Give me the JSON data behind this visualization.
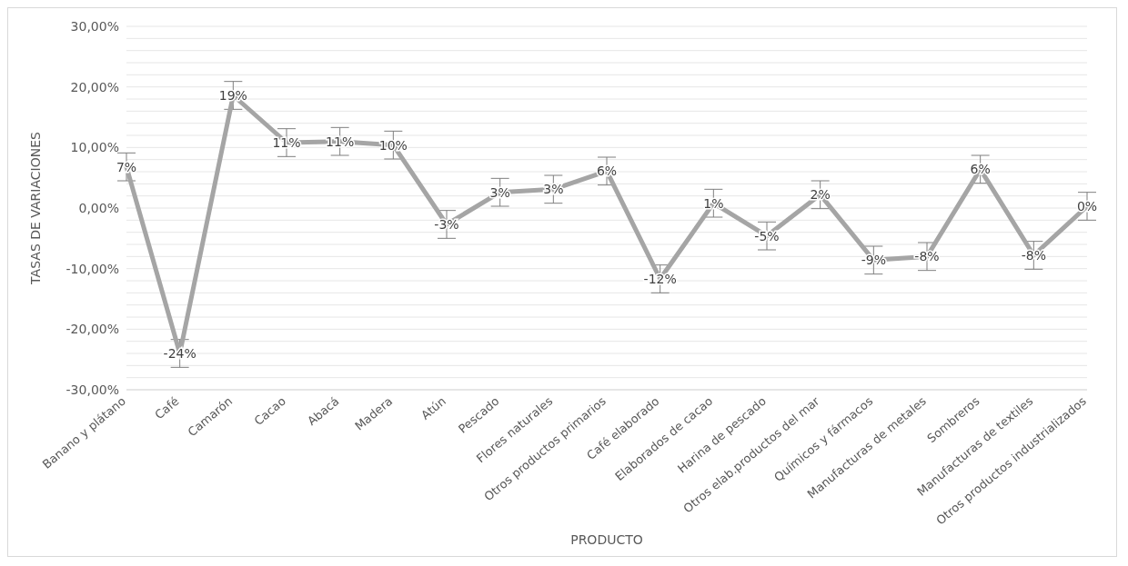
{
  "chart_data": {
    "type": "line",
    "xlabel": "PRODUCTO",
    "ylabel": "TASAS DE VARIACIONES",
    "categories": [
      "Banano y plátano",
      "Café",
      "Camarón",
      "Cacao",
      "Abacá",
      "Madera",
      "Atún",
      "Pescado",
      "Flores naturales",
      "Otros productos primarios",
      "Café elaborado",
      "Elaborados de cacao",
      "Harina de pescado",
      "Otros elab.productos del mar",
      "Químicos y fármacos",
      "Manufacturas de metales",
      "Sombreros",
      "Manufacturas de textiles",
      "Otros productos industrializados"
    ],
    "series": [
      {
        "color": "#a5a5a5",
        "values": [
          6.8,
          -24,
          18.6,
          10.8,
          11,
          10.4,
          -2.7,
          2.6,
          3.1,
          6.1,
          -11.7,
          0.8,
          -4.6,
          2.2,
          -8.6,
          -8,
          6.4,
          -7.8,
          0.3
        ],
        "errors": [
          2.3,
          2.3,
          2.3,
          2.3,
          2.3,
          2.3,
          2.3,
          2.3,
          2.3,
          2.3,
          2.3,
          2.3,
          2.3,
          2.3,
          2.3,
          2.3,
          2.3,
          2.3,
          2.3
        ],
        "value_labels": [
          "7%",
          "-24%",
          "19%",
          "11%",
          "11%",
          "10%",
          "-3%",
          "3%",
          "3%",
          "6%",
          "-12%",
          "1%",
          "-5%",
          "2%",
          "-9%",
          "-8%",
          "6%",
          "-8%",
          "0%"
        ]
      }
    ],
    "ylim": [
      -30,
      30
    ],
    "yticks": [
      {
        "value": -30,
        "label": "-30,00%"
      },
      {
        "value": -28,
        "label": null
      },
      {
        "value": -26,
        "label": null
      },
      {
        "value": -24,
        "label": null
      },
      {
        "value": -22,
        "label": null
      },
      {
        "value": -20,
        "label": "-20,00%"
      },
      {
        "value": -18,
        "label": null
      },
      {
        "value": -16,
        "label": null
      },
      {
        "value": -14,
        "label": null
      },
      {
        "value": -12,
        "label": null
      },
      {
        "value": -10,
        "label": "-10,00%"
      },
      {
        "value": -8,
        "label": null
      },
      {
        "value": -6,
        "label": null
      },
      {
        "value": -4,
        "label": null
      },
      {
        "value": -2,
        "label": null
      },
      {
        "value": 0,
        "label": "0,00%"
      },
      {
        "value": 2,
        "label": null
      },
      {
        "value": 4,
        "label": null
      },
      {
        "value": 6,
        "label": null
      },
      {
        "value": 8,
        "label": null
      },
      {
        "value": 10,
        "label": "10,00%"
      },
      {
        "value": 12,
        "label": null
      },
      {
        "value": 14,
        "label": null
      },
      {
        "value": 16,
        "label": null
      },
      {
        "value": 18,
        "label": null
      },
      {
        "value": 20,
        "label": "20,00%"
      },
      {
        "value": 22,
        "label": null
      },
      {
        "value": 24,
        "label": null
      },
      {
        "value": 26,
        "label": null
      },
      {
        "value": 28,
        "label": null
      },
      {
        "value": 30,
        "label": "30,00%"
      }
    ],
    "grid": "y",
    "marker": "none",
    "line_style": "solid"
  }
}
